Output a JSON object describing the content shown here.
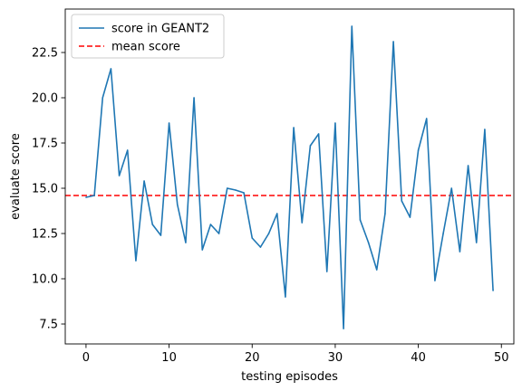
{
  "chart_data": {
    "type": "line",
    "xlabel": "testing episodes",
    "ylabel": "evaluate score",
    "xlim": [
      -2.5,
      51.5
    ],
    "ylim": [
      6.4,
      24.9
    ],
    "xticks": [
      0,
      10,
      20,
      30,
      40,
      50
    ],
    "xtick_labels": [
      "0",
      "10",
      "20",
      "30",
      "40",
      "50"
    ],
    "yticks": [
      7.5,
      10.0,
      12.5,
      15.0,
      17.5,
      20.0,
      22.5
    ],
    "ytick_labels": [
      "7.5",
      "10.0",
      "12.5",
      "15.0",
      "17.5",
      "20.0",
      "22.5"
    ],
    "grid": false,
    "legend_position": "top-left",
    "series": [
      {
        "name": "score in GEANT2",
        "color": "#1f77b4",
        "style": "solid",
        "x": [
          0,
          1,
          2,
          3,
          4,
          5,
          6,
          7,
          8,
          9,
          10,
          11,
          12,
          13,
          14,
          15,
          16,
          17,
          18,
          19,
          20,
          21,
          22,
          23,
          24,
          25,
          26,
          27,
          28,
          29,
          30,
          31,
          32,
          33,
          34,
          35,
          36,
          37,
          38,
          39,
          40,
          41,
          42,
          43,
          44,
          45,
          46,
          47,
          48,
          49
        ],
        "values": [
          14.5,
          14.6,
          20.0,
          21.6,
          15.7,
          17.1,
          11.0,
          15.4,
          13.0,
          12.4,
          18.6,
          14.1,
          12.0,
          20.0,
          11.6,
          13.0,
          12.5,
          15.0,
          14.9,
          14.75,
          12.25,
          11.75,
          12.5,
          13.6,
          9.0,
          18.35,
          13.1,
          17.35,
          18.0,
          10.4,
          18.6,
          7.25,
          23.95,
          13.25,
          12.0,
          10.5,
          13.6,
          23.1,
          14.3,
          13.4,
          17.1,
          18.85,
          9.9,
          12.5,
          15.0,
          11.5,
          16.25,
          12.0,
          18.25,
          9.35
        ]
      },
      {
        "name": "mean score",
        "color": "#ff0000",
        "style": "dashed",
        "value": 14.6
      }
    ]
  }
}
